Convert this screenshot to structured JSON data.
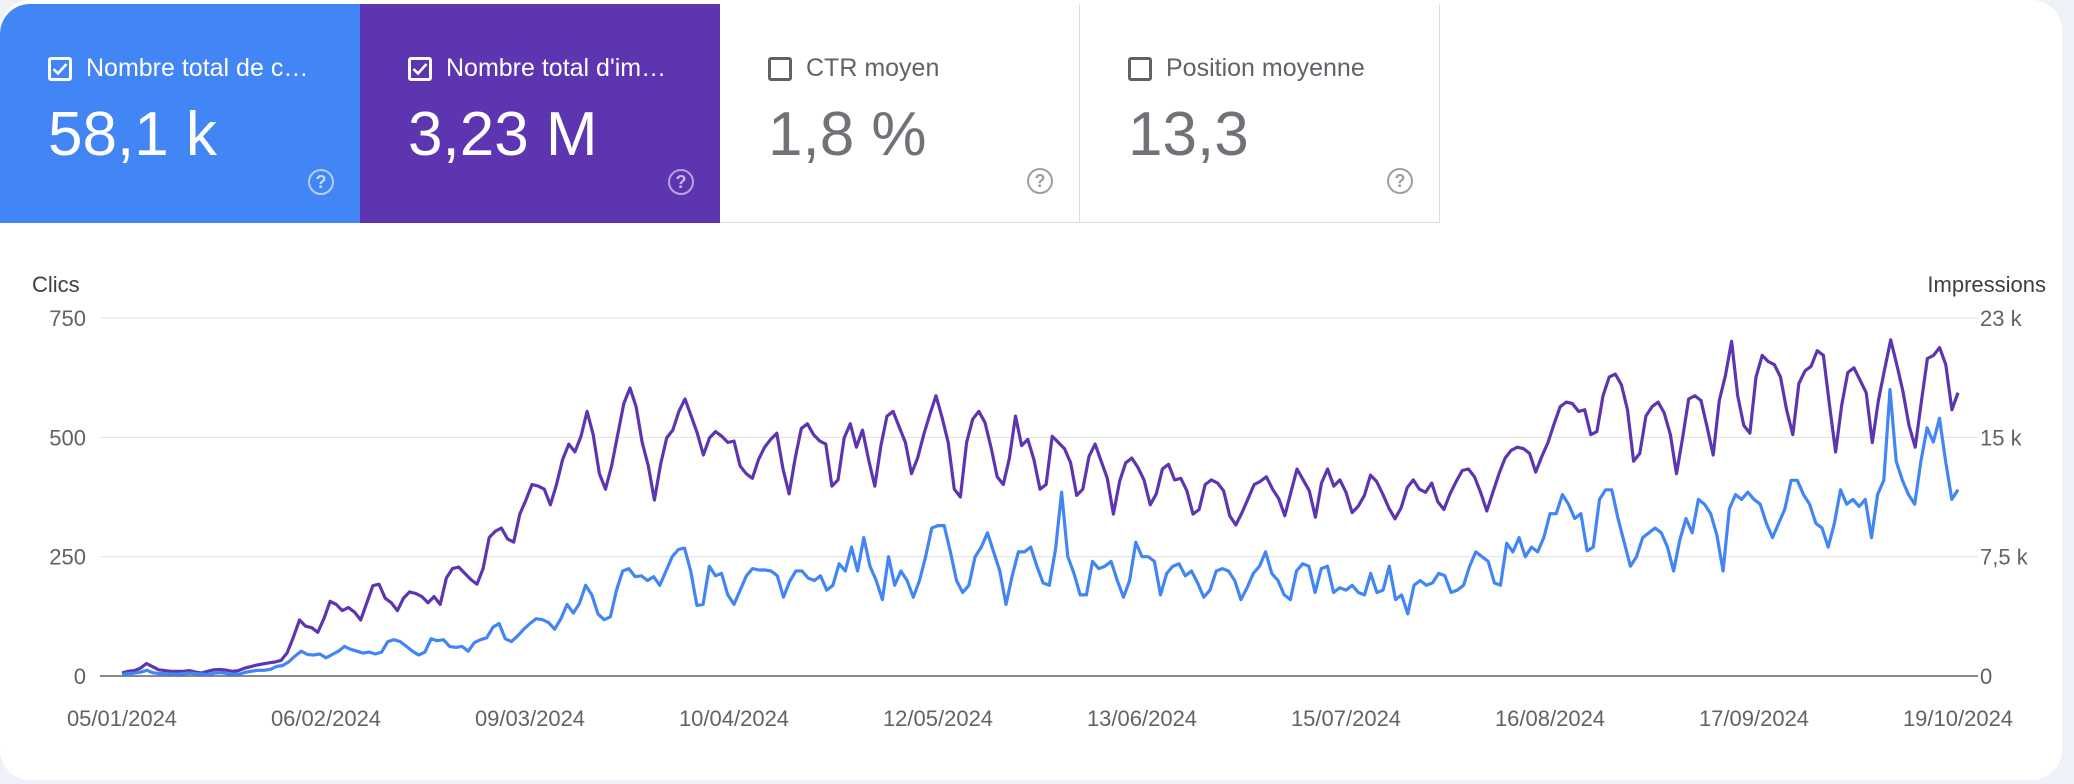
{
  "metrics": [
    {
      "label": "Nombre total de c…",
      "value": "58,1 k",
      "checked": true
    },
    {
      "label": "Nombre total d'im…",
      "value": "3,23 M",
      "checked": true
    },
    {
      "label": "CTR moyen",
      "value": "1,8 %",
      "checked": false
    },
    {
      "label": "Position moyenne",
      "value": "13,3",
      "checked": false
    }
  ],
  "colors": {
    "clicks": "#4285f4",
    "impressions": "#5e35b1",
    "grid": "#e0e0e0"
  },
  "chart_data": {
    "type": "line",
    "y_left_label": "Clics",
    "y_right_label": "Impressions",
    "y_left_ticks": [
      "0",
      "250",
      "500",
      "750"
    ],
    "y_right_ticks": [
      "0",
      "7,5 k",
      "15 k",
      "23 k"
    ],
    "x_tick_labels": [
      "05/01/2024",
      "06/02/2024",
      "09/03/2024",
      "10/04/2024",
      "12/05/2024",
      "13/06/2024",
      "15/07/2024",
      "16/08/2024",
      "17/09/2024",
      "19/10/2024"
    ],
    "ylim_left": [
      0,
      750
    ],
    "ylim_right": [
      0,
      23000
    ],
    "x_start": "05/01/2024",
    "x_end": "19/10/2024",
    "grid": true,
    "series": [
      {
        "axis": "left",
        "values": [
          3,
          5,
          6,
          8,
          12,
          7,
          5,
          5,
          4,
          4,
          5,
          6,
          5,
          4,
          3,
          6,
          7,
          5,
          4,
          4,
          8,
          10,
          12,
          12,
          14,
          20,
          22,
          30,
          42,
          52,
          45,
          44,
          46,
          38,
          45,
          52,
          62,
          56,
          52,
          48,
          50,
          46,
          50,
          72,
          76,
          72,
          62,
          52,
          44,
          50,
          78,
          74,
          76,
          62,
          60,
          62,
          52,
          70,
          76,
          80,
          102,
          110,
          78,
          72,
          84,
          98,
          110,
          120,
          118,
          112,
          98,
          120,
          150,
          132,
          152,
          190,
          170,
          130,
          118,
          124,
          180,
          220,
          225,
          208,
          210,
          200,
          208,
          190,
          220,
          250,
          265,
          268,
          220,
          148,
          150,
          230,
          210,
          215,
          170,
          150,
          180,
          210,
          225,
          222,
          222,
          220,
          210,
          165,
          198,
          220,
          220,
          205,
          200,
          210,
          180,
          190,
          235,
          220,
          270,
          220,
          290,
          230,
          200,
          160,
          250,
          190,
          220,
          200,
          165,
          200,
          250,
          310,
          315,
          315,
          260,
          200,
          175,
          190,
          250,
          270,
          300,
          260,
          220,
          150,
          210,
          260,
          260,
          270,
          230,
          195,
          190,
          265,
          385,
          250,
          215,
          170,
          170,
          240,
          225,
          230,
          240,
          200,
          165,
          200,
          280,
          250,
          250,
          240,
          170,
          215,
          230,
          235,
          210,
          220,
          195,
          165,
          180,
          220,
          225,
          220,
          200,
          160,
          185,
          215,
          230,
          260,
          215,
          200,
          170,
          160,
          220,
          235,
          230,
          175,
          225,
          230,
          175,
          185,
          180,
          190,
          175,
          170,
          215,
          175,
          180,
          230,
          160,
          170,
          130,
          190,
          200,
          190,
          195,
          215,
          210,
          175,
          180,
          190,
          230,
          260,
          250,
          240,
          195,
          190,
          278,
          260,
          290,
          250,
          270,
          260,
          290,
          340,
          340,
          380,
          360,
          330,
          340,
          262,
          270,
          370,
          390,
          390,
          330,
          280,
          230,
          250,
          290,
          300,
          310,
          300,
          270,
          220,
          285,
          330,
          300,
          370,
          360,
          340,
          295,
          220,
          350,
          380,
          370,
          385,
          370,
          360,
          320,
          290,
          320,
          350,
          410,
          410,
          380,
          360,
          320,
          310,
          270,
          320,
          390,
          360,
          370,
          355,
          370,
          290,
          380,
          410,
          600,
          450,
          410,
          380,
          360,
          450,
          520,
          490,
          540,
          450,
          370,
          390
        ]
      },
      {
        "axis": "right",
        "values": [
          200,
          300,
          350,
          500,
          800,
          600,
          400,
          350,
          300,
          300,
          300,
          350,
          250,
          200,
          300,
          400,
          420,
          380,
          300,
          350,
          500,
          600,
          700,
          780,
          850,
          900,
          1000,
          1500,
          2500,
          3600,
          3200,
          3100,
          2800,
          3700,
          4800,
          4600,
          4200,
          4400,
          4100,
          3600,
          4700,
          5800,
          5900,
          5000,
          4700,
          4200,
          5000,
          5400,
          5300,
          5100,
          4700,
          5100,
          4600,
          6300,
          6900,
          7000,
          6600,
          6200,
          5900,
          6900,
          8900,
          9300,
          9500,
          8800,
          8600,
          10400,
          11300,
          12300,
          12200,
          12000,
          11000,
          12300,
          13900,
          14900,
          14400,
          15400,
          17000,
          15500,
          13000,
          12000,
          13500,
          15500,
          17500,
          18500,
          17300,
          15000,
          13500,
          11300,
          13600,
          15300,
          15800,
          17000,
          17800,
          16700,
          15600,
          14200,
          15300,
          15700,
          15400,
          15000,
          15100,
          13500,
          13000,
          12700,
          13900,
          14700,
          15200,
          15600,
          13300,
          11700,
          14000,
          15900,
          16200,
          15500,
          15100,
          14900,
          12200,
          12600,
          15300,
          16200,
          14700,
          15800,
          13900,
          12200,
          14800,
          16700,
          17000,
          16000,
          15000,
          13000,
          14000,
          15500,
          16800,
          18000,
          16600,
          15000,
          12000,
          11500,
          15000,
          16500,
          17000,
          16300,
          14700,
          12800,
          12300,
          14000,
          16700,
          14800,
          15200,
          13900,
          12000,
          12300,
          15400,
          15000,
          14600,
          13700,
          11600,
          12000,
          14100,
          14900,
          13800,
          12700,
          10400,
          12500,
          13700,
          14000,
          13400,
          12600,
          11000,
          11700,
          13300,
          13600,
          12600,
          12700,
          11900,
          10400,
          10700,
          12300,
          12600,
          12400,
          11900,
          10300,
          9700,
          10500,
          11400,
          12300,
          12500,
          12800,
          12000,
          11400,
          10300,
          11800,
          13300,
          12600,
          11900,
          10200,
          12400,
          13300,
          12200,
          12600,
          11800,
          10500,
          10900,
          11600,
          12900,
          12500,
          11700,
          10800,
          10100,
          10800,
          12100,
          12600,
          12000,
          11800,
          12400,
          11200,
          10700,
          11700,
          12500,
          13200,
          13300,
          12800,
          11800,
          10600,
          11800,
          13000,
          14000,
          14500,
          14700,
          14600,
          14300,
          13100,
          14100,
          15000,
          16200,
          17300,
          17600,
          17500,
          17000,
          17100,
          15500,
          15700,
          18000,
          19200,
          19400,
          18700,
          17100,
          13800,
          14300,
          16700,
          17300,
          17600,
          16900,
          15500,
          13000,
          15300,
          17800,
          18000,
          17700,
          16000,
          14200,
          17700,
          19300,
          21500,
          18000,
          16100,
          15600,
          19200,
          20600,
          20200,
          20000,
          19200,
          17100,
          15500,
          18800,
          19600,
          19900,
          20900,
          20600,
          17400,
          14400,
          17400,
          19500,
          19800,
          19000,
          18200,
          15000,
          17700,
          19700,
          21600,
          20000,
          18300,
          16100,
          14700,
          17600,
          20400,
          20600,
          21100,
          20000,
          17100,
          18200
        ]
      }
    ]
  }
}
